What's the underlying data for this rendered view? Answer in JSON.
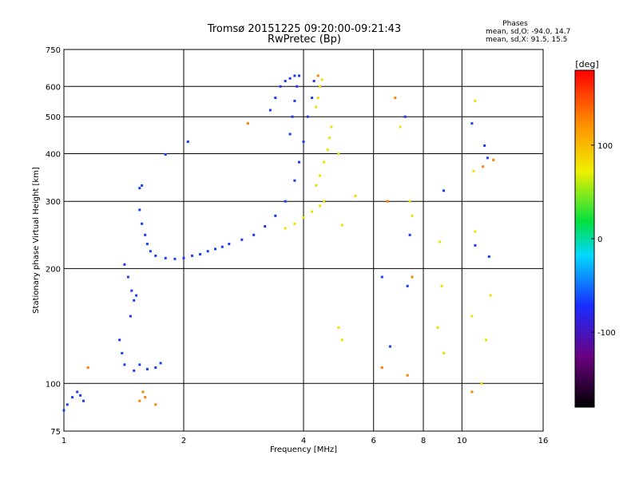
{
  "chart_data": {
    "type": "scatter",
    "title": "Tromsø 20151225 09:20:00-09:21:43",
    "subtitle": "RwPretec (Bp)",
    "xlabel": "Frequency [MHz]",
    "ylabel": "Stationary phase Virtual Height [km]",
    "x_scale": "log2",
    "y_scale": "log",
    "xlim": [
      1,
      16
    ],
    "ylim": [
      75,
      750
    ],
    "x_ticks": [
      1,
      2,
      4,
      6,
      8,
      10,
      16
    ],
    "x_tick_labels": [
      "1",
      "2",
      "4",
      "6",
      "8",
      "10",
      "16"
    ],
    "y_ticks": [
      75,
      100,
      200,
      300,
      400,
      500,
      600,
      750
    ],
    "y_tick_labels": [
      "75",
      "100",
      "200",
      "300",
      "400",
      "500",
      "600",
      "750"
    ],
    "grid": true,
    "phase_info": {
      "title": "Phases",
      "line_o": "mean, sd,O: -94.0, 14.7",
      "line_x": "mean, sd,X: 91.5, 15.5"
    },
    "colorbar": {
      "label": "[deg]",
      "range": [
        -180,
        180
      ],
      "ticks": [
        100,
        0,
        -100
      ],
      "tick_labels": [
        "100",
        "0",
        "-100"
      ]
    },
    "series": [
      {
        "trace": "O-mode (blue, phase ≈ -94°)",
        "color": "#1a3cf0",
        "points": [
          [
            1.0,
            85
          ],
          [
            1.02,
            88
          ],
          [
            1.05,
            92
          ],
          [
            1.08,
            95
          ],
          [
            1.1,
            93
          ],
          [
            1.12,
            90
          ],
          [
            1.42,
            205
          ],
          [
            1.45,
            190
          ],
          [
            1.48,
            175
          ],
          [
            1.5,
            165
          ],
          [
            1.47,
            150
          ],
          [
            1.52,
            170
          ],
          [
            1.38,
            130
          ],
          [
            1.4,
            120
          ],
          [
            1.42,
            112
          ],
          [
            1.5,
            108
          ],
          [
            1.55,
            112
          ],
          [
            1.62,
            109
          ],
          [
            1.7,
            110
          ],
          [
            1.75,
            113
          ],
          [
            1.55,
            285
          ],
          [
            1.57,
            262
          ],
          [
            1.6,
            245
          ],
          [
            1.62,
            232
          ],
          [
            1.65,
            222
          ],
          [
            1.7,
            216
          ],
          [
            1.8,
            213
          ],
          [
            1.9,
            212
          ],
          [
            2.0,
            213
          ],
          [
            2.1,
            216
          ],
          [
            2.2,
            218
          ],
          [
            2.3,
            222
          ],
          [
            2.4,
            225
          ],
          [
            2.5,
            228
          ],
          [
            2.6,
            232
          ],
          [
            2.8,
            238
          ],
          [
            3.0,
            245
          ],
          [
            3.2,
            258
          ],
          [
            3.4,
            275
          ],
          [
            3.6,
            300
          ],
          [
            3.8,
            340
          ],
          [
            3.9,
            380
          ],
          [
            4.0,
            430
          ],
          [
            4.1,
            500
          ],
          [
            4.2,
            560
          ],
          [
            4.25,
            620
          ],
          [
            3.3,
            520
          ],
          [
            3.4,
            560
          ],
          [
            3.5,
            600
          ],
          [
            3.6,
            620
          ],
          [
            3.7,
            630
          ],
          [
            3.8,
            640
          ],
          [
            3.7,
            450
          ],
          [
            3.75,
            500
          ],
          [
            3.8,
            550
          ],
          [
            3.85,
            600
          ],
          [
            3.9,
            640
          ],
          [
            1.8,
            398
          ],
          [
            2.05,
            430
          ],
          [
            1.55,
            325
          ],
          [
            1.57,
            330
          ],
          [
            6.3,
            190
          ],
          [
            6.6,
            125
          ],
          [
            7.2,
            500
          ],
          [
            7.3,
            180
          ],
          [
            7.4,
            245
          ],
          [
            9.0,
            320
          ],
          [
            10.6,
            480
          ],
          [
            10.8,
            230
          ],
          [
            11.6,
            390
          ],
          [
            11.7,
            215
          ],
          [
            11.4,
            420
          ]
        ]
      },
      {
        "trace": "X-mode (yellow, phase ≈ +91°)",
        "color": "#f0e000",
        "points": [
          [
            3.6,
            255
          ],
          [
            3.8,
            262
          ],
          [
            4.0,
            272
          ],
          [
            4.2,
            282
          ],
          [
            4.4,
            292
          ],
          [
            4.5,
            300
          ],
          [
            4.3,
            330
          ],
          [
            4.4,
            350
          ],
          [
            4.5,
            380
          ],
          [
            4.6,
            410
          ],
          [
            4.65,
            440
          ],
          [
            4.7,
            470
          ],
          [
            4.3,
            530
          ],
          [
            4.35,
            560
          ],
          [
            4.4,
            600
          ],
          [
            4.45,
            625
          ],
          [
            4.9,
            400
          ],
          [
            5.0,
            260
          ],
          [
            4.9,
            140
          ],
          [
            5.0,
            130
          ],
          [
            5.4,
            310
          ],
          [
            7.0,
            470
          ],
          [
            7.4,
            300
          ],
          [
            7.5,
            275
          ],
          [
            8.8,
            235
          ],
          [
            8.9,
            180
          ],
          [
            8.7,
            140
          ],
          [
            9.0,
            120
          ],
          [
            10.8,
            550
          ],
          [
            10.7,
            360
          ],
          [
            10.8,
            250
          ],
          [
            10.6,
            150
          ],
          [
            11.8,
            170
          ],
          [
            11.5,
            130
          ],
          [
            11.2,
            100
          ]
        ]
      },
      {
        "trace": "scattered echoes (mixed phase)",
        "color": "#ff8000",
        "points": [
          [
            2.9,
            480
          ],
          [
            4.35,
            640
          ],
          [
            6.5,
            300
          ],
          [
            6.3,
            110
          ],
          [
            6.8,
            560
          ],
          [
            7.3,
            105
          ],
          [
            7.5,
            190
          ],
          [
            10.6,
            95
          ],
          [
            11.3,
            370
          ],
          [
            12.0,
            385
          ],
          [
            1.58,
            95
          ],
          [
            1.6,
            92
          ],
          [
            1.55,
            90
          ],
          [
            1.7,
            88
          ],
          [
            1.15,
            110
          ]
        ]
      }
    ]
  }
}
